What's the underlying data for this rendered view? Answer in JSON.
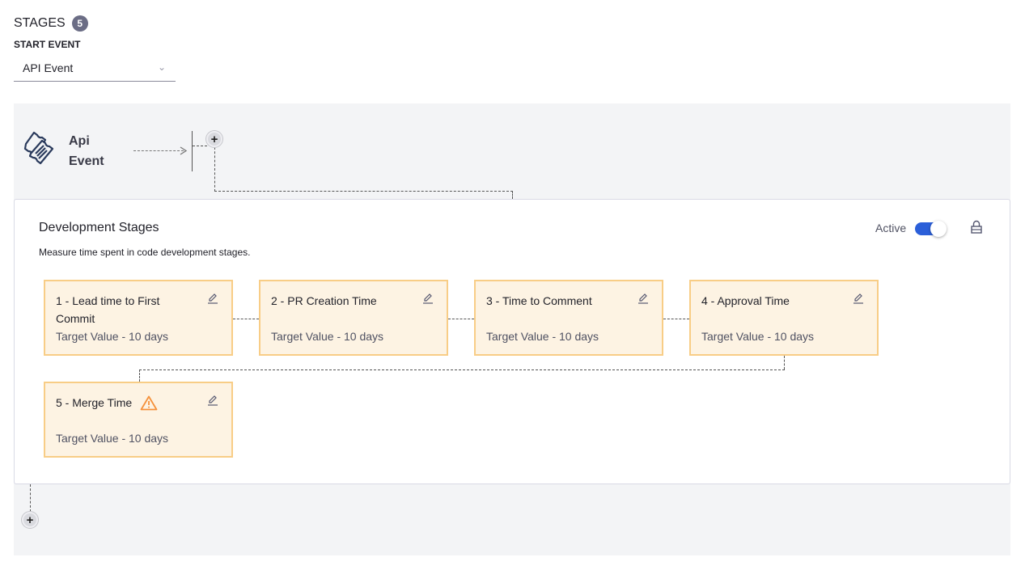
{
  "header": {
    "title": "STAGES",
    "count": "5",
    "start_event_label": "START EVENT",
    "start_event_value": "API Event"
  },
  "flow": {
    "event_label_line1": "Api",
    "event_label_line2": "Event"
  },
  "panel": {
    "title": "Development Stages",
    "description": "Measure time spent in code development stages.",
    "active_label": "Active",
    "active": true
  },
  "stages": [
    {
      "name": "1 - Lead time to First Commit",
      "target": "Target Value - 10 days",
      "warning": false
    },
    {
      "name": "2 - PR Creation Time",
      "target": "Target Value - 10 days",
      "warning": false
    },
    {
      "name": "3 - Time to Comment",
      "target": "Target Value - 10 days",
      "warning": false
    },
    {
      "name": "4 - Approval Time",
      "target": "Target Value - 10 days",
      "warning": false
    },
    {
      "name": "5 - Merge Time",
      "target": "Target Value - 10 days",
      "warning": true
    }
  ],
  "colors": {
    "accent": "#2b5fd9",
    "card_bg": "#fdf3e3",
    "card_border": "#f8cd86",
    "warning": "#f5913b"
  }
}
